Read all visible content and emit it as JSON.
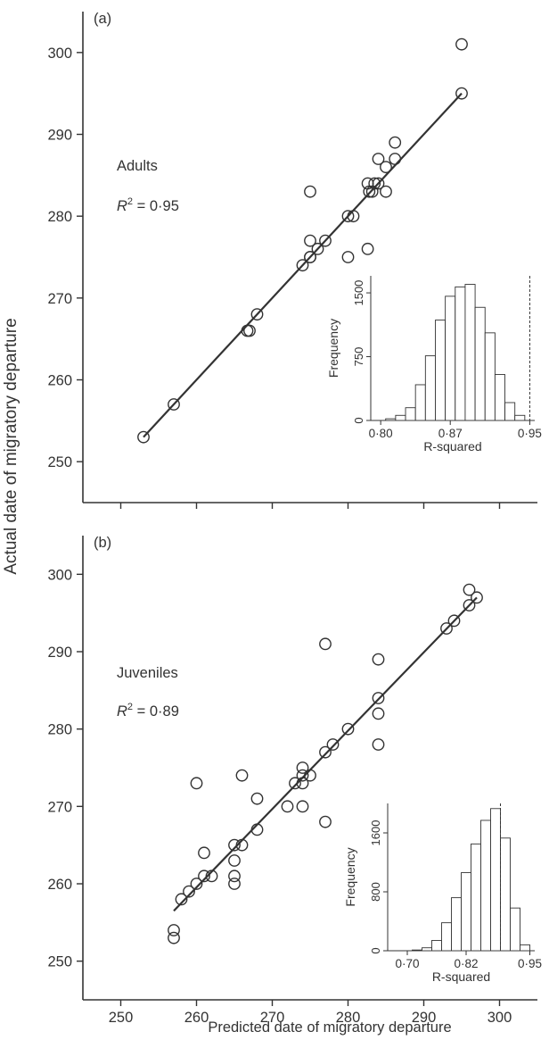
{
  "figure": {
    "ylabel": "Actual date of migratory departure",
    "xlabel": "Predicted date of migratory departure"
  },
  "chart_data": [
    {
      "type": "scatter",
      "panel": "(a)",
      "group_label": "Adults",
      "r2_symbol": "R",
      "r2_sup": "2",
      "r2_value": " = 0·95",
      "ylim": [
        245,
        305
      ],
      "xlim": [
        245,
        305
      ],
      "yticks": [
        250,
        260,
        270,
        280,
        290,
        300
      ],
      "xticks": [
        250,
        260,
        270,
        280,
        290,
        300
      ],
      "x_tick_labels_shown": false,
      "regression_line": {
        "x": [
          253,
          295
        ],
        "y": [
          253,
          295
        ]
      },
      "points": {
        "x": [
          253,
          257,
          266.7,
          267,
          268,
          274,
          275,
          275,
          275,
          275,
          276,
          277,
          280,
          280,
          280.7,
          282.6,
          282.8,
          282.6,
          283.2,
          283.5,
          284,
          284,
          285,
          285,
          286.2,
          286.2,
          295,
          295
        ],
        "y": [
          253,
          257,
          266,
          266,
          268,
          274,
          275,
          275,
          277,
          283,
          276,
          277,
          280,
          275,
          280,
          276,
          283,
          284,
          283,
          284,
          284,
          287,
          286,
          283,
          287,
          289,
          295,
          301
        ]
      },
      "inset": {
        "type": "histogram",
        "xlabel": "R-squared",
        "ylabel": "Frequency",
        "xlim": [
          0.79,
          0.955
        ],
        "ylim": [
          0,
          1700
        ],
        "xtick_values": [
          0.8,
          0.87,
          0.95
        ],
        "xtick_labels": [
          "0·80",
          "0·87",
          "0·95"
        ],
        "ytick_values": [
          0,
          750,
          1500
        ],
        "ytick_labels": [
          "0",
          "750",
          "1500"
        ],
        "bin_edges": [
          0.805,
          0.815,
          0.825,
          0.835,
          0.845,
          0.855,
          0.865,
          0.875,
          0.885,
          0.895,
          0.905,
          0.915,
          0.925,
          0.935,
          0.945
        ],
        "counts": [
          20,
          60,
          150,
          420,
          760,
          1180,
          1460,
          1570,
          1600,
          1330,
          1030,
          540,
          210,
          60
        ],
        "observed_line": 0.95
      }
    },
    {
      "type": "scatter",
      "panel": "(b)",
      "group_label": "Juveniles",
      "r2_symbol": "R",
      "r2_sup": "2",
      "r2_value": " = 0·89",
      "ylim": [
        245,
        305
      ],
      "xlim": [
        245,
        305
      ],
      "yticks": [
        250,
        260,
        270,
        280,
        290,
        300
      ],
      "xticks": [
        250,
        260,
        270,
        280,
        290,
        300
      ],
      "x_tick_labels_shown": true,
      "regression_line": {
        "x": [
          257,
          297
        ],
        "y": [
          256.5,
          297
        ]
      },
      "points": {
        "x": [
          257,
          257,
          258,
          259,
          260,
          260,
          261,
          261,
          262,
          265,
          265,
          265,
          265,
          266,
          266,
          268,
          268,
          272,
          273,
          274,
          274,
          274,
          274,
          275,
          277,
          277,
          277,
          278,
          280,
          284,
          284,
          284,
          284,
          293,
          294,
          296,
          296,
          297
        ],
        "y": [
          254,
          253,
          258,
          259,
          260,
          273,
          261,
          264,
          261,
          265,
          263,
          261,
          260,
          274,
          265,
          271,
          267,
          270,
          273,
          274,
          275,
          273,
          270,
          274,
          291,
          277,
          268,
          278,
          280,
          289,
          284,
          282,
          278,
          293,
          294,
          296,
          298,
          297
        ]
      },
      "inset": {
        "type": "histogram",
        "xlabel": "R-squared",
        "ylabel": "Frequency",
        "xlim": [
          0.66,
          0.96
        ],
        "ylim": [
          0,
          2000
        ],
        "xtick_values": [
          0.7,
          0.82,
          0.95
        ],
        "xtick_labels": [
          "0·70",
          "0·82",
          "0·95"
        ],
        "ytick_values": [
          0,
          800,
          1600
        ],
        "ytick_labels": [
          "0",
          "800",
          "1600"
        ],
        "bin_edges": [
          0.71,
          0.73,
          0.75,
          0.77,
          0.79,
          0.81,
          0.83,
          0.85,
          0.87,
          0.89,
          0.91,
          0.93,
          0.95
        ],
        "counts": [
          10,
          40,
          140,
          380,
          720,
          1060,
          1450,
          1770,
          1930,
          1530,
          580,
          80
        ],
        "observed_line": 0.89
      }
    }
  ]
}
